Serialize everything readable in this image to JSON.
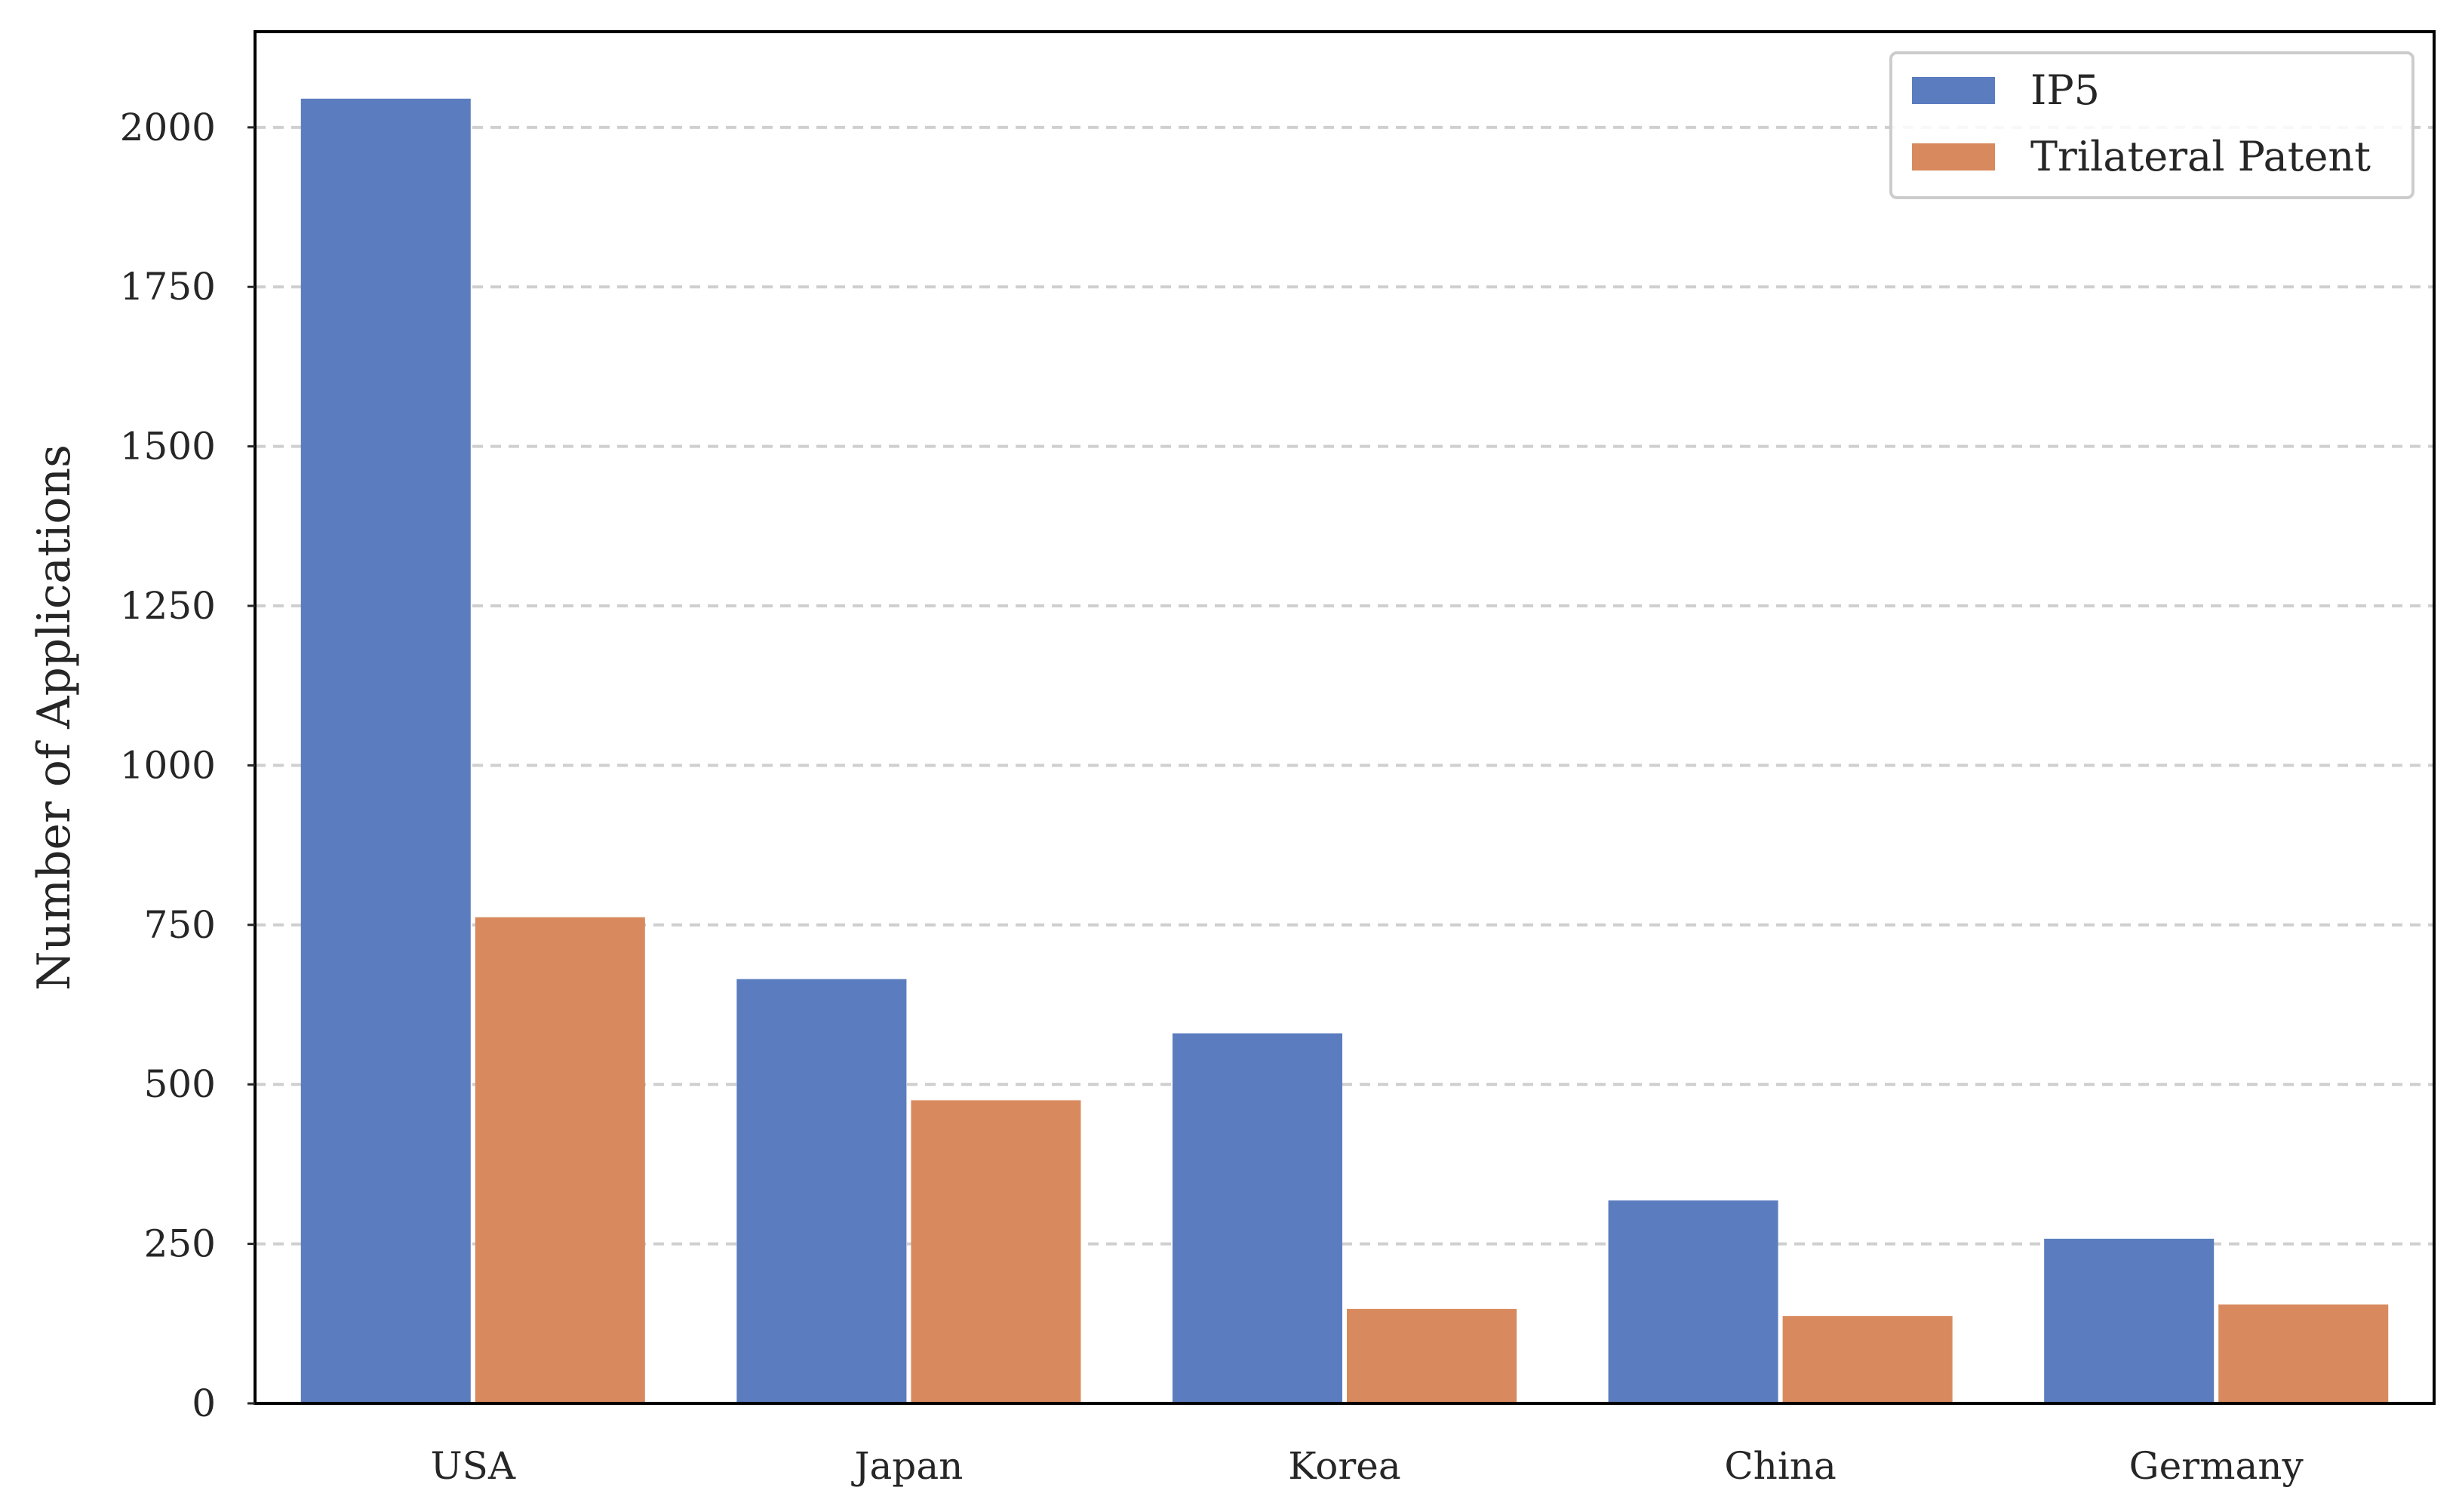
{
  "chart_data": {
    "type": "bar",
    "title": "",
    "xlabel": "",
    "ylabel": "Number of Applications",
    "categories": [
      "USA",
      "Japan",
      "Korea",
      "China",
      "Germany"
    ],
    "series": [
      {
        "name": "IP5",
        "color": "#5b7dbf",
        "values": [
          2045,
          665,
          580,
          318,
          258
        ]
      },
      {
        "name": "Trilateral Patent",
        "color": "#d88a5e",
        "values": [
          762,
          475,
          148,
          137,
          155
        ]
      }
    ],
    "ylim": [
      0,
      2150
    ],
    "yticks": [
      0,
      250,
      500,
      750,
      1000,
      1250,
      1500,
      1750,
      2000
    ],
    "ytick_labels": [
      "0",
      "250",
      "500",
      "750",
      "1000",
      "1250",
      "1500",
      "1750",
      "2000"
    ],
    "grid": "y-dashed",
    "legend": "top-right"
  }
}
